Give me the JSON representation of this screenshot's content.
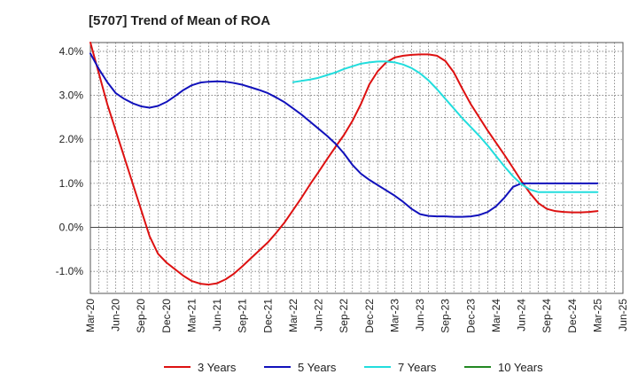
{
  "chart_data": {
    "type": "line",
    "title": "[5707]  Trend of Mean of ROA",
    "xlabel": "",
    "ylabel": "",
    "ylim": [
      -1.5,
      4.2
    ],
    "yticks": [
      4.0,
      3.0,
      2.0,
      1.0,
      0.0,
      -1.0
    ],
    "ytick_labels": [
      "4.0%",
      "3.0%",
      "2.0%",
      "1.0%",
      "0.0%",
      "-1.0%"
    ],
    "xlim": [
      0,
      63
    ],
    "xticks": [
      0,
      3,
      6,
      9,
      12,
      15,
      18,
      21,
      24,
      27,
      30,
      33,
      36,
      39,
      42,
      45,
      48,
      51,
      54,
      57,
      60,
      63
    ],
    "xtick_labels": [
      "Mar-20",
      "Jun-20",
      "Sep-20",
      "Dec-20",
      "Mar-21",
      "Jun-21",
      "Sep-21",
      "Dec-21",
      "Mar-22",
      "Jun-22",
      "Sep-22",
      "Dec-22",
      "Mar-23",
      "Jun-23",
      "Sep-23",
      "Dec-23",
      "Mar-24",
      "Jun-24",
      "Sep-24",
      "Dec-24",
      "Mar-25",
      "Jun-25"
    ],
    "grid": true,
    "legend_position": "bottom",
    "series": [
      {
        "name": "3 Years",
        "color": "#dd1111",
        "x": [
          0,
          1,
          2,
          3,
          4,
          5,
          6,
          7,
          8,
          9,
          10,
          11,
          12,
          13,
          14,
          15,
          16,
          17,
          18,
          19,
          20,
          21,
          22,
          23,
          24,
          25,
          26,
          27,
          28,
          29,
          30,
          31,
          32,
          33,
          34,
          35,
          36,
          37,
          38,
          39,
          40,
          41,
          42,
          43,
          44,
          45,
          46,
          47,
          48,
          49,
          50,
          51,
          52,
          53,
          54,
          55,
          56,
          57,
          58,
          59,
          60
        ],
        "values": [
          4.2,
          3.5,
          2.8,
          2.2,
          1.6,
          1.0,
          0.4,
          -0.2,
          -0.6,
          -0.8,
          -0.95,
          -1.1,
          -1.22,
          -1.28,
          -1.3,
          -1.27,
          -1.18,
          -1.05,
          -0.88,
          -0.7,
          -0.52,
          -0.34,
          -0.12,
          0.12,
          0.4,
          0.68,
          0.98,
          1.26,
          1.55,
          1.83,
          2.1,
          2.42,
          2.8,
          3.25,
          3.55,
          3.75,
          3.86,
          3.9,
          3.92,
          3.93,
          3.93,
          3.9,
          3.78,
          3.52,
          3.15,
          2.8,
          2.5,
          2.2,
          1.92,
          1.64,
          1.35,
          1.05,
          0.78,
          0.55,
          0.42,
          0.37,
          0.35,
          0.34,
          0.34,
          0.35,
          0.37
        ]
      },
      {
        "name": "5 Years",
        "color": "#1111bb",
        "x": [
          0,
          1,
          2,
          3,
          4,
          5,
          6,
          7,
          8,
          9,
          10,
          11,
          12,
          13,
          14,
          15,
          16,
          17,
          18,
          19,
          20,
          21,
          22,
          23,
          24,
          25,
          26,
          27,
          28,
          29,
          30,
          31,
          32,
          33,
          34,
          35,
          36,
          37,
          38,
          39,
          40,
          41,
          42,
          43,
          44,
          45,
          46,
          47,
          48,
          49,
          50,
          51,
          52,
          53,
          54,
          55,
          56,
          57,
          58,
          59,
          60
        ],
        "values": [
          3.95,
          3.6,
          3.3,
          3.05,
          2.92,
          2.82,
          2.75,
          2.72,
          2.76,
          2.85,
          2.98,
          3.12,
          3.23,
          3.29,
          3.31,
          3.32,
          3.31,
          3.28,
          3.24,
          3.18,
          3.12,
          3.05,
          2.95,
          2.84,
          2.7,
          2.56,
          2.4,
          2.24,
          2.08,
          1.9,
          1.68,
          1.42,
          1.22,
          1.08,
          0.96,
          0.84,
          0.72,
          0.58,
          0.42,
          0.3,
          0.26,
          0.25,
          0.25,
          0.24,
          0.24,
          0.25,
          0.28,
          0.35,
          0.48,
          0.68,
          0.92,
          1.0,
          1.0,
          1.0,
          1.0,
          1.0,
          1.0,
          1.0,
          1.0,
          1.0,
          1.0
        ]
      },
      {
        "name": "7 Years",
        "color": "#22dddd",
        "x": [
          24,
          25,
          26,
          27,
          28,
          29,
          30,
          31,
          32,
          33,
          34,
          35,
          36,
          37,
          38,
          39,
          40,
          41,
          42,
          43,
          44,
          45,
          46,
          47,
          48,
          49,
          50,
          51,
          52,
          53,
          54,
          55,
          56,
          57,
          58,
          59,
          60
        ],
        "values": [
          3.3,
          3.33,
          3.36,
          3.4,
          3.46,
          3.52,
          3.6,
          3.66,
          3.72,
          3.75,
          3.77,
          3.77,
          3.75,
          3.7,
          3.62,
          3.5,
          3.34,
          3.14,
          2.92,
          2.7,
          2.48,
          2.28,
          2.08,
          1.86,
          1.62,
          1.38,
          1.16,
          0.98,
          0.86,
          0.8,
          0.8,
          0.8,
          0.8,
          0.8,
          0.8,
          0.8,
          0.8
        ]
      },
      {
        "name": "10 Years",
        "color": "#228822",
        "x": [],
        "values": []
      }
    ]
  }
}
